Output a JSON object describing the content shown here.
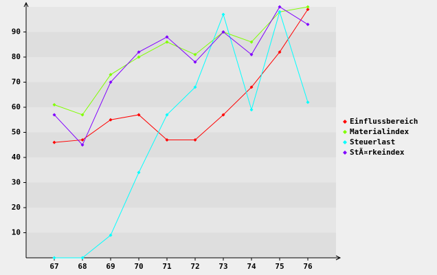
{
  "chart_data": {
    "type": "line",
    "categories": [
      "67",
      "68",
      "69",
      "70",
      "71",
      "72",
      "73",
      "74",
      "75",
      "76"
    ],
    "series": [
      {
        "name": "Einflussbereich",
        "color": "#ff0000",
        "values": [
          46,
          47,
          55,
          57,
          47,
          47,
          57,
          68,
          82,
          99
        ]
      },
      {
        "name": "Materialindex",
        "color": "#80ff00",
        "values": [
          61,
          57,
          73,
          80,
          86,
          81,
          90,
          86,
          98,
          100
        ]
      },
      {
        "name": "Steuerlast",
        "color": "#00ffff",
        "values": [
          0,
          0,
          9,
          34,
          57,
          68,
          97,
          59,
          98,
          62
        ]
      },
      {
        "name": "StÃ¤rkeindex",
        "color": "#8000ff",
        "values": [
          57,
          45,
          70,
          82,
          88,
          78,
          90,
          81,
          100,
          93
        ]
      }
    ],
    "ylim": [
      0,
      100
    ],
    "yticks": [
      10,
      20,
      30,
      40,
      50,
      60,
      70,
      80,
      90
    ],
    "grid": true,
    "legend": "right"
  }
}
